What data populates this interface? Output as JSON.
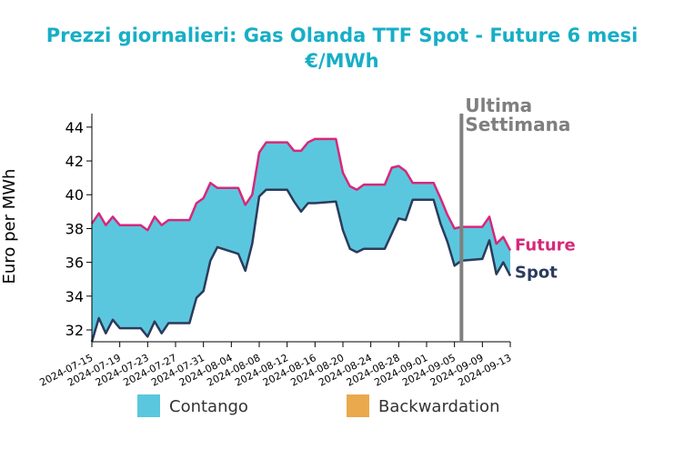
{
  "chart_data": {
    "type": "area",
    "title_line1": "Prezzi giornalieri: Gas Olanda TTF Spot - Future 6 mesi",
    "title_line2": "€/MWh",
    "ylabel": "Euro per MWh",
    "xlabel": "",
    "ylim": [
      31.3,
      44.8
    ],
    "yticks": [
      32,
      34,
      36,
      38,
      40,
      42,
      44
    ],
    "x": [
      "2024-07-15",
      "2024-07-16",
      "2024-07-17",
      "2024-07-18",
      "2024-07-19",
      "2024-07-22",
      "2024-07-23",
      "2024-07-24",
      "2024-07-25",
      "2024-07-26",
      "2024-07-29",
      "2024-07-30",
      "2024-07-31",
      "2024-08-01",
      "2024-08-02",
      "2024-08-05",
      "2024-08-06",
      "2024-08-07",
      "2024-08-08",
      "2024-08-09",
      "2024-08-12",
      "2024-08-13",
      "2024-08-14",
      "2024-08-15",
      "2024-08-16",
      "2024-08-19",
      "2024-08-20",
      "2024-08-21",
      "2024-08-22",
      "2024-08-23",
      "2024-08-26",
      "2024-08-27",
      "2024-08-28",
      "2024-08-29",
      "2024-08-30",
      "2024-09-02",
      "2024-09-03",
      "2024-09-04",
      "2024-09-05",
      "2024-09-06",
      "2024-09-09",
      "2024-09-10",
      "2024-09-11",
      "2024-09-12",
      "2024-09-13"
    ],
    "xticks": [
      "2024-07-15",
      "2024-07-19",
      "2024-07-23",
      "2024-07-27",
      "2024-07-31",
      "2024-08-04",
      "2024-08-08",
      "2024-08-12",
      "2024-08-16",
      "2024-08-20",
      "2024-08-24",
      "2024-08-28",
      "2024-09-01",
      "2024-09-05",
      "2024-09-09",
      "2024-09-13"
    ],
    "series": [
      {
        "name": "Future",
        "color": "#d6287a",
        "values": [
          38.3,
          38.9,
          38.2,
          38.7,
          38.2,
          38.2,
          37.9,
          38.7,
          38.2,
          38.5,
          38.5,
          39.5,
          39.8,
          40.7,
          40.4,
          40.4,
          39.4,
          40.0,
          42.5,
          43.1,
          43.1,
          42.6,
          42.6,
          43.1,
          43.3,
          43.3,
          41.3,
          40.5,
          40.3,
          40.6,
          40.6,
          41.6,
          41.7,
          41.4,
          40.7,
          40.7,
          39.8,
          38.8,
          38.0,
          38.1,
          38.1,
          38.7,
          37.1,
          37.5,
          36.7
        ]
      },
      {
        "name": "Spot",
        "color": "#2b3b5c",
        "values": [
          31.3,
          32.7,
          31.8,
          32.6,
          32.1,
          32.1,
          31.6,
          32.5,
          31.8,
          32.4,
          32.4,
          33.9,
          34.3,
          36.1,
          36.9,
          36.5,
          35.5,
          37.1,
          39.9,
          40.3,
          40.3,
          39.6,
          39.0,
          39.5,
          39.5,
          39.6,
          37.9,
          36.8,
          36.6,
          36.8,
          36.8,
          37.7,
          38.6,
          38.5,
          39.7,
          39.7,
          38.3,
          37.2,
          35.8,
          36.1,
          36.2,
          37.3,
          35.3,
          36.0,
          35.2
        ]
      }
    ],
    "fill_colors": {
      "contango": "#5bc7de",
      "backwardation": "#eaa94c"
    },
    "vline": {
      "x": "2024-09-06",
      "color": "#7f7f7f",
      "label_line1": "Ultima",
      "label_line2": "Settimana"
    },
    "legend": {
      "position": "bottom",
      "items": [
        {
          "label": "Contango",
          "color": "#5bc7de"
        },
        {
          "label": "Backwardation",
          "color": "#eaa94c"
        }
      ]
    },
    "grid": false
  }
}
